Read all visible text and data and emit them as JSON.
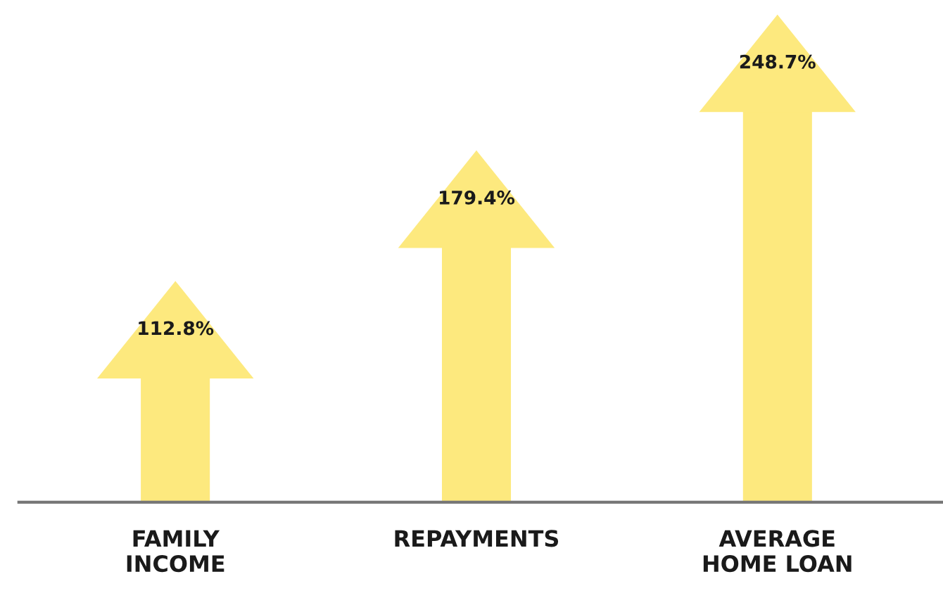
{
  "chart_data": {
    "type": "bar",
    "categories": [
      "FAMILY\nINCOME",
      "REPAYMENTS",
      "AVERAGE\nHOME LOAN"
    ],
    "values": [
      112.8,
      179.4,
      248.7
    ],
    "value_labels": [
      "112.8%",
      "179.4%",
      "248.7%"
    ],
    "color": "#fde97e",
    "grid": false,
    "legend": false
  }
}
